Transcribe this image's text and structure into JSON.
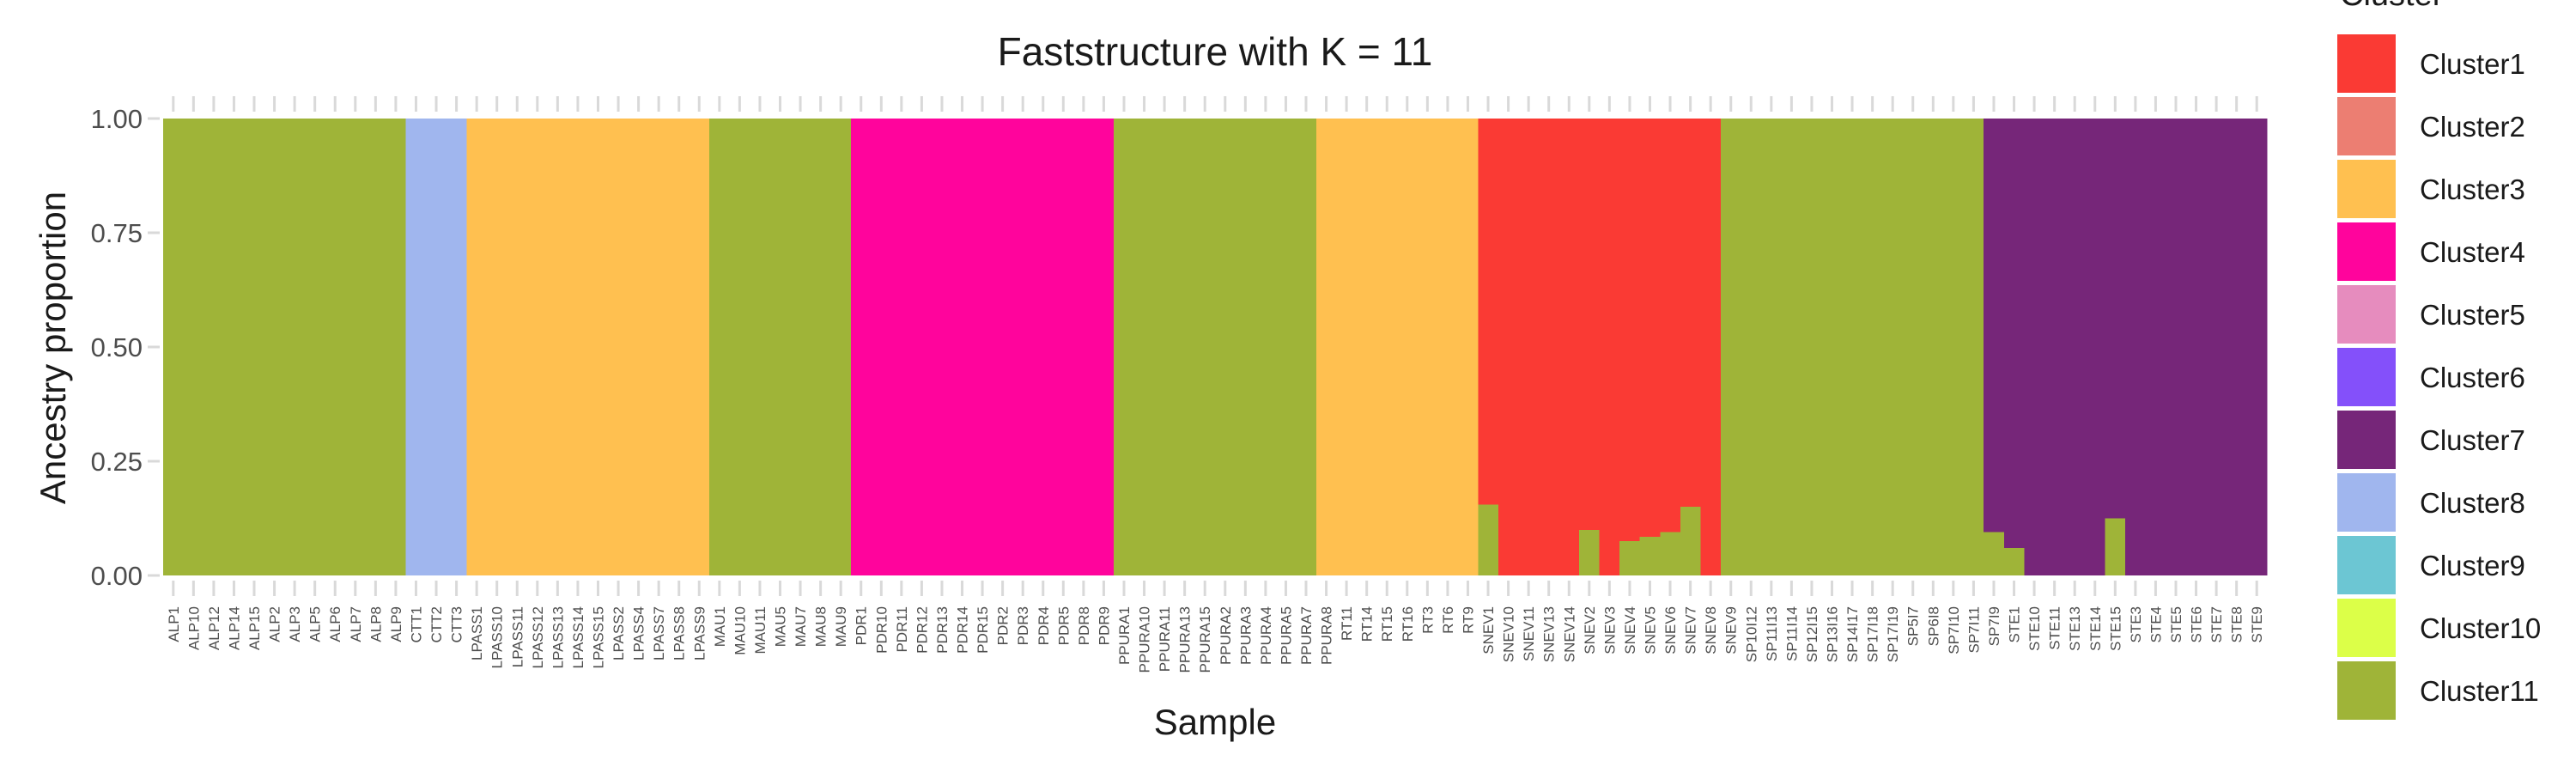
{
  "chart_data": {
    "type": "bar",
    "stacked": true,
    "title": "Faststructure with K = 11",
    "xlabel": "Sample",
    "ylabel": "Ancestry proportion",
    "ylim": [
      0,
      1
    ],
    "yticks": [
      "0.00",
      "0.25",
      "0.50",
      "0.75",
      "1.00"
    ],
    "grid": false,
    "legend": {
      "title": "Cluster",
      "position": "right",
      "entries": [
        {
          "name": "Cluster1",
          "color": "#FA3A34"
        },
        {
          "name": "Cluster2",
          "color": "#EC7E72"
        },
        {
          "name": "Cluster3",
          "color": "#FFC050"
        },
        {
          "name": "Cluster4",
          "color": "#FF049C"
        },
        {
          "name": "Cluster5",
          "color": "#E68CBE"
        },
        {
          "name": "Cluster6",
          "color": "#8450FA"
        },
        {
          "name": "Cluster7",
          "color": "#762679"
        },
        {
          "name": "Cluster8",
          "color": "#A0B6EE"
        },
        {
          "name": "Cluster9",
          "color": "#6CC6D3"
        },
        {
          "name": "Cluster10",
          "color": "#DCFF48"
        },
        {
          "name": "Cluster11",
          "color": "#9FB438"
        }
      ]
    },
    "samples": [
      {
        "label": "ALP1",
        "major": "Cluster11",
        "minor": 0
      },
      {
        "label": "ALP10",
        "major": "Cluster11",
        "minor": 0
      },
      {
        "label": "ALP12",
        "major": "Cluster11",
        "minor": 0
      },
      {
        "label": "ALP14",
        "major": "Cluster11",
        "minor": 0
      },
      {
        "label": "ALP15",
        "major": "Cluster11",
        "minor": 0
      },
      {
        "label": "ALP2",
        "major": "Cluster11",
        "minor": 0
      },
      {
        "label": "ALP3",
        "major": "Cluster11",
        "minor": 0
      },
      {
        "label": "ALP5",
        "major": "Cluster11",
        "minor": 0
      },
      {
        "label": "ALP6",
        "major": "Cluster11",
        "minor": 0
      },
      {
        "label": "ALP7",
        "major": "Cluster11",
        "minor": 0
      },
      {
        "label": "ALP8",
        "major": "Cluster11",
        "minor": 0
      },
      {
        "label": "ALP9",
        "major": "Cluster11",
        "minor": 0
      },
      {
        "label": "CTT1",
        "major": "Cluster8",
        "minor": 0
      },
      {
        "label": "CTT2",
        "major": "Cluster8",
        "minor": 0
      },
      {
        "label": "CTT3",
        "major": "Cluster8",
        "minor": 0
      },
      {
        "label": "LPASS1",
        "major": "Cluster3",
        "minor": 0
      },
      {
        "label": "LPASS10",
        "major": "Cluster3",
        "minor": 0
      },
      {
        "label": "LPASS11",
        "major": "Cluster3",
        "minor": 0
      },
      {
        "label": "LPASS12",
        "major": "Cluster3",
        "minor": 0
      },
      {
        "label": "LPASS13",
        "major": "Cluster3",
        "minor": 0
      },
      {
        "label": "LPASS14",
        "major": "Cluster3",
        "minor": 0
      },
      {
        "label": "LPASS15",
        "major": "Cluster3",
        "minor": 0
      },
      {
        "label": "LPASS2",
        "major": "Cluster3",
        "minor": 0
      },
      {
        "label": "LPASS4",
        "major": "Cluster3",
        "minor": 0
      },
      {
        "label": "LPASS7",
        "major": "Cluster3",
        "minor": 0
      },
      {
        "label": "LPASS8",
        "major": "Cluster3",
        "minor": 0
      },
      {
        "label": "LPASS9",
        "major": "Cluster3",
        "minor": 0
      },
      {
        "label": "MAU1",
        "major": "Cluster11",
        "minor": 0
      },
      {
        "label": "MAU10",
        "major": "Cluster11",
        "minor": 0
      },
      {
        "label": "MAU11",
        "major": "Cluster11",
        "minor": 0
      },
      {
        "label": "MAU5",
        "major": "Cluster11",
        "minor": 0
      },
      {
        "label": "MAU7",
        "major": "Cluster11",
        "minor": 0
      },
      {
        "label": "MAU8",
        "major": "Cluster11",
        "minor": 0
      },
      {
        "label": "MAU9",
        "major": "Cluster11",
        "minor": 0
      },
      {
        "label": "PDR1",
        "major": "Cluster4",
        "minor": 0
      },
      {
        "label": "PDR10",
        "major": "Cluster4",
        "minor": 0
      },
      {
        "label": "PDR11",
        "major": "Cluster4",
        "minor": 0
      },
      {
        "label": "PDR12",
        "major": "Cluster4",
        "minor": 0
      },
      {
        "label": "PDR13",
        "major": "Cluster4",
        "minor": 0
      },
      {
        "label": "PDR14",
        "major": "Cluster4",
        "minor": 0
      },
      {
        "label": "PDR15",
        "major": "Cluster4",
        "minor": 0
      },
      {
        "label": "PDR2",
        "major": "Cluster4",
        "minor": 0
      },
      {
        "label": "PDR3",
        "major": "Cluster4",
        "minor": 0
      },
      {
        "label": "PDR4",
        "major": "Cluster4",
        "minor": 0
      },
      {
        "label": "PDR5",
        "major": "Cluster4",
        "minor": 0
      },
      {
        "label": "PDR8",
        "major": "Cluster4",
        "minor": 0
      },
      {
        "label": "PDR9",
        "major": "Cluster4",
        "minor": 0
      },
      {
        "label": "PPURA1",
        "major": "Cluster11",
        "minor": 0
      },
      {
        "label": "PPURA10",
        "major": "Cluster11",
        "minor": 0
      },
      {
        "label": "PPURA11",
        "major": "Cluster11",
        "minor": 0
      },
      {
        "label": "PPURA13",
        "major": "Cluster11",
        "minor": 0
      },
      {
        "label": "PPURA15",
        "major": "Cluster11",
        "minor": 0
      },
      {
        "label": "PPURA2",
        "major": "Cluster11",
        "minor": 0
      },
      {
        "label": "PPURA3",
        "major": "Cluster11",
        "minor": 0
      },
      {
        "label": "PPURA4",
        "major": "Cluster11",
        "minor": 0
      },
      {
        "label": "PPURA5",
        "major": "Cluster11",
        "minor": 0
      },
      {
        "label": "PPURA7",
        "major": "Cluster11",
        "minor": 0
      },
      {
        "label": "PPURA8",
        "major": "Cluster3",
        "minor": 0
      },
      {
        "label": "RT11",
        "major": "Cluster3",
        "minor": 0
      },
      {
        "label": "RT14",
        "major": "Cluster3",
        "minor": 0
      },
      {
        "label": "RT15",
        "major": "Cluster3",
        "minor": 0
      },
      {
        "label": "RT16",
        "major": "Cluster3",
        "minor": 0
      },
      {
        "label": "RT3",
        "major": "Cluster3",
        "minor": 0
      },
      {
        "label": "RT6",
        "major": "Cluster3",
        "minor": 0
      },
      {
        "label": "RT9",
        "major": "Cluster3",
        "minor": 0
      },
      {
        "label": "SNEV1",
        "major": "Cluster1",
        "minor": 0.155
      },
      {
        "label": "SNEV10",
        "major": "Cluster1",
        "minor": 0
      },
      {
        "label": "SNEV11",
        "major": "Cluster1",
        "minor": 0
      },
      {
        "label": "SNEV13",
        "major": "Cluster1",
        "minor": 0
      },
      {
        "label": "SNEV14",
        "major": "Cluster1",
        "minor": 0
      },
      {
        "label": "SNEV2",
        "major": "Cluster1",
        "minor": 0.1
      },
      {
        "label": "SNEV3",
        "major": "Cluster1",
        "minor": 0
      },
      {
        "label": "SNEV4",
        "major": "Cluster1",
        "minor": 0.075
      },
      {
        "label": "SNEV5",
        "major": "Cluster1",
        "minor": 0.085
      },
      {
        "label": "SNEV6",
        "major": "Cluster1",
        "minor": 0.095
      },
      {
        "label": "SNEV7",
        "major": "Cluster1",
        "minor": 0.15
      },
      {
        "label": "SNEV8",
        "major": "Cluster1",
        "minor": 0
      },
      {
        "label": "SNEV9",
        "major": "Cluster11",
        "minor": 0
      },
      {
        "label": "SP10I12",
        "major": "Cluster11",
        "minor": 0
      },
      {
        "label": "SP11I13",
        "major": "Cluster11",
        "minor": 0
      },
      {
        "label": "SP11I14",
        "major": "Cluster11",
        "minor": 0
      },
      {
        "label": "SP12I15",
        "major": "Cluster11",
        "minor": 0
      },
      {
        "label": "SP13I16",
        "major": "Cluster11",
        "minor": 0
      },
      {
        "label": "SP14I17",
        "major": "Cluster11",
        "minor": 0
      },
      {
        "label": "SP17I18",
        "major": "Cluster11",
        "minor": 0
      },
      {
        "label": "SP17I19",
        "major": "Cluster11",
        "minor": 0
      },
      {
        "label": "SP5I7",
        "major": "Cluster11",
        "minor": 0
      },
      {
        "label": "SP6I8",
        "major": "Cluster11",
        "minor": 0
      },
      {
        "label": "SP7I10",
        "major": "Cluster11",
        "minor": 0
      },
      {
        "label": "SP7I11",
        "major": "Cluster11",
        "minor": 0
      },
      {
        "label": "SP7I9",
        "major": "Cluster7",
        "minor": 0.095
      },
      {
        "label": "STE1",
        "major": "Cluster7",
        "minor": 0.06
      },
      {
        "label": "STE10",
        "major": "Cluster7",
        "minor": 0
      },
      {
        "label": "STE11",
        "major": "Cluster7",
        "minor": 0
      },
      {
        "label": "STE13",
        "major": "Cluster7",
        "minor": 0
      },
      {
        "label": "STE14",
        "major": "Cluster7",
        "minor": 0
      },
      {
        "label": "STE15",
        "major": "Cluster7",
        "minor": 0.125
      },
      {
        "label": "STE3",
        "major": "Cluster7",
        "minor": 0
      },
      {
        "label": "STE4",
        "major": "Cluster7",
        "minor": 0
      },
      {
        "label": "STE5",
        "major": "Cluster7",
        "minor": 0
      },
      {
        "label": "STE6",
        "major": "Cluster7",
        "minor": 0
      },
      {
        "label": "STE7",
        "major": "Cluster7",
        "minor": 0
      },
      {
        "label": "STE8",
        "major": "Cluster7",
        "minor": 0
      },
      {
        "label": "STE9",
        "major": "Cluster7",
        "minor": 0
      }
    ],
    "minor_cluster": "Cluster11",
    "notes_on_values": ""
  }
}
